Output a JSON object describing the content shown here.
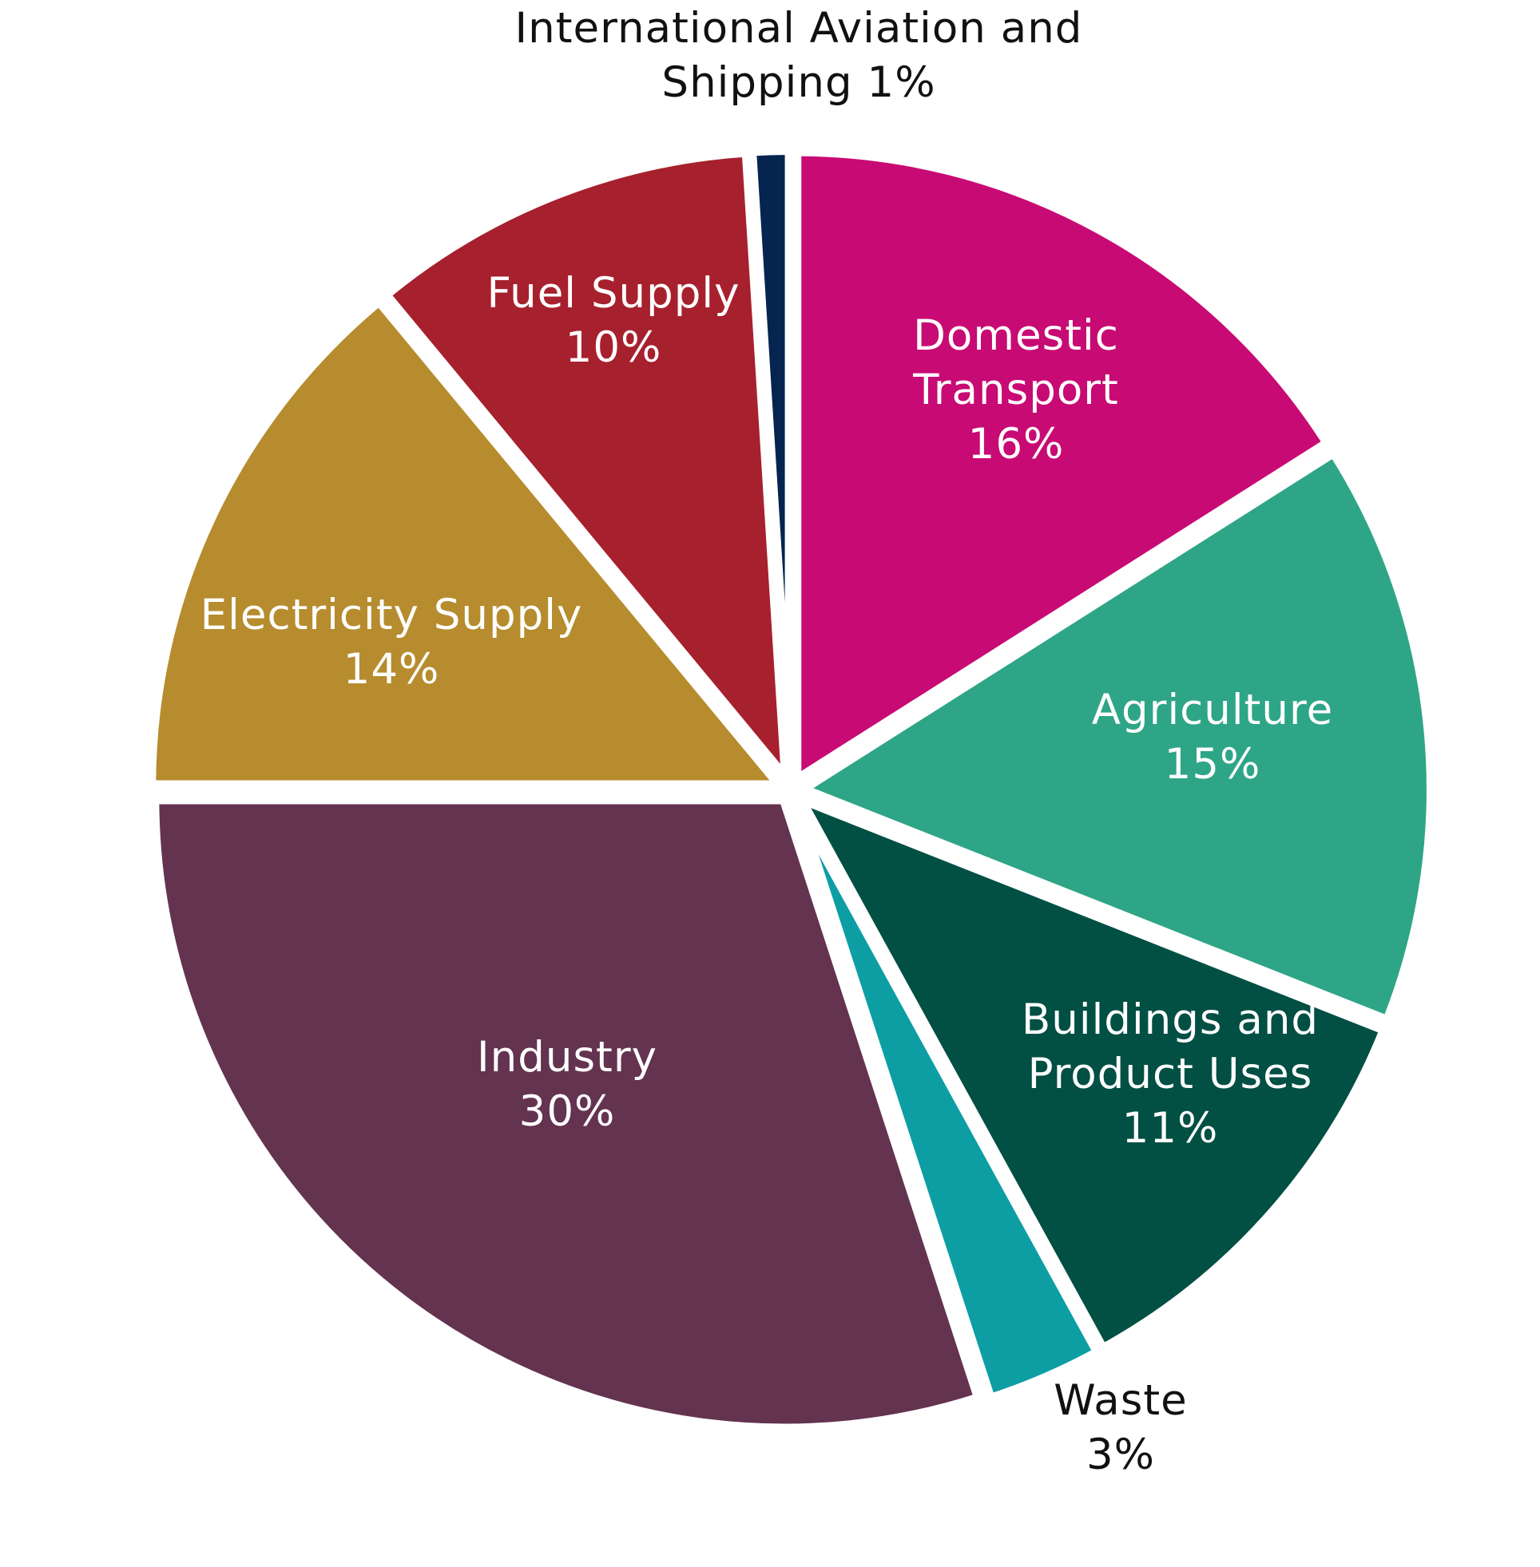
{
  "chart_data": {
    "type": "pie",
    "unit": "%",
    "slices": [
      {
        "name": "Domestic Transport",
        "label_lines": [
          "Domestic",
          "Transport",
          "16%"
        ],
        "value": 16,
        "color": "#c80a74",
        "label_color": "#ffffff"
      },
      {
        "name": "Agriculture",
        "label_lines": [
          "Agriculture",
          "15%"
        ],
        "value": 15,
        "color": "#2ea586",
        "label_color": "#ffffff"
      },
      {
        "name": "Buildings and Product Uses",
        "label_lines": [
          "Buildings and",
          "Product Uses",
          "11%"
        ],
        "value": 11,
        "color": "#024f44",
        "label_color": "#ffffff"
      },
      {
        "name": "Waste",
        "label_lines": [
          "Waste",
          "3%"
        ],
        "value": 3,
        "color": "#0d9ea4",
        "label_color": "#111111"
      },
      {
        "name": "Industry",
        "label_lines": [
          "Industry",
          "30%"
        ],
        "value": 30,
        "color": "#633350",
        "label_color": "#ffffff"
      },
      {
        "name": "Electricity Supply",
        "label_lines": [
          "Electricity Supply",
          "14%"
        ],
        "value": 14,
        "color": "#b68c2e",
        "label_color": "#ffffff"
      },
      {
        "name": "Fuel Supply",
        "label_lines": [
          "Fuel Supply",
          "10%"
        ],
        "value": 10,
        "color": "#a7202d",
        "label_color": "#ffffff"
      },
      {
        "name": "International Aviation and Shipping",
        "label_lines": [
          "International Aviation and",
          "Shipping  1%"
        ],
        "value": 1,
        "color": "#05244f",
        "label_color": "#111111"
      }
    ]
  }
}
